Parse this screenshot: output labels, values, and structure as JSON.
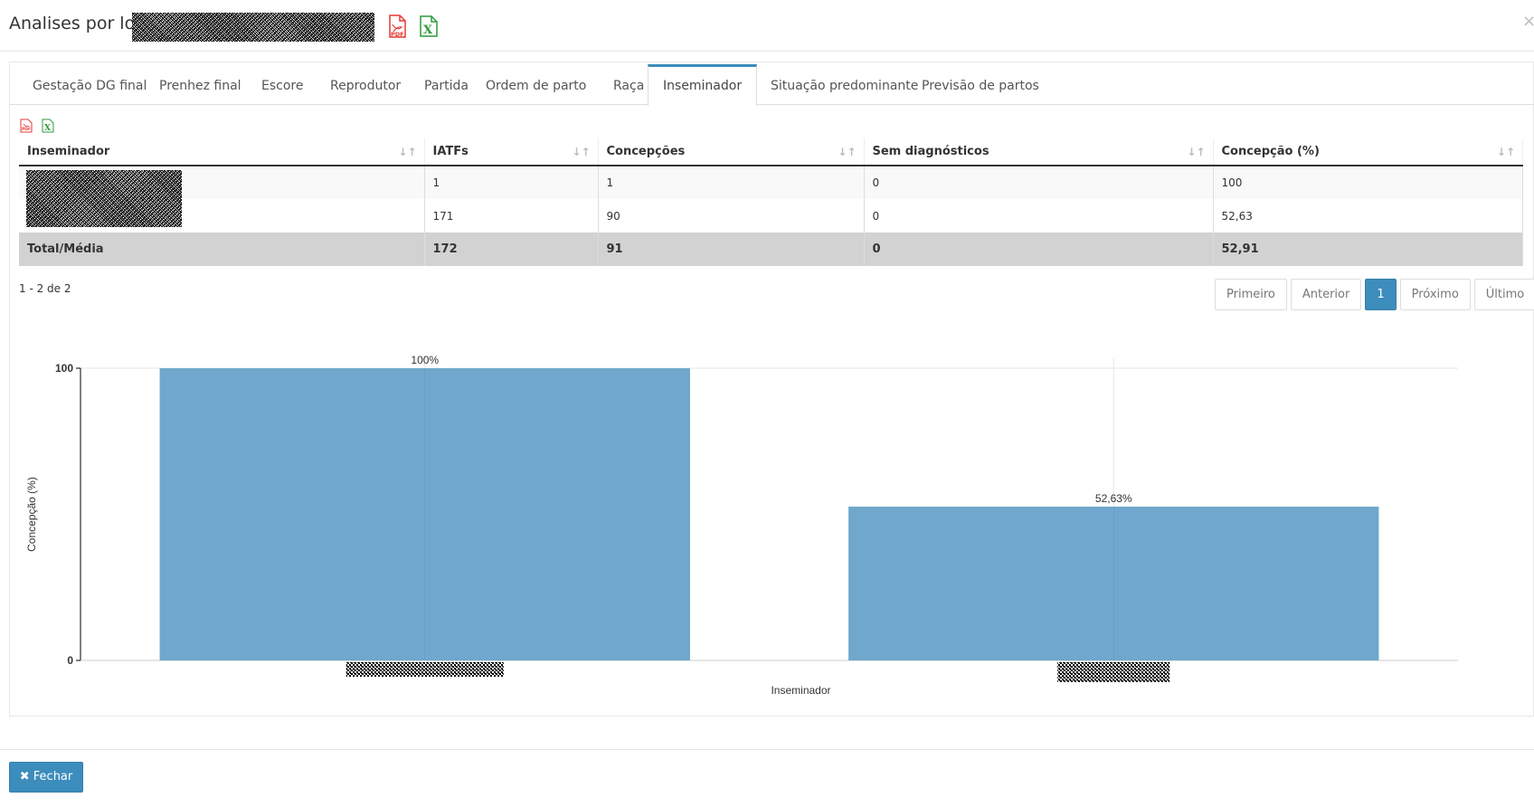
{
  "modal": {
    "title": "Analises por lotes",
    "close_symbol": "×"
  },
  "tabs": [
    {
      "label": "Gestação DG final"
    },
    {
      "label": "Prenhez final"
    },
    {
      "label": "Escore"
    },
    {
      "label": "Reprodutor"
    },
    {
      "label": "Partida"
    },
    {
      "label": "Ordem de parto"
    },
    {
      "label": "Raça"
    },
    {
      "label": "Inseminador"
    },
    {
      "label": "Situação predominante"
    },
    {
      "label": "Previsão de partos"
    }
  ],
  "active_tab": "Inseminador",
  "table": {
    "headers": [
      "Inseminador",
      "IATFs",
      "Concepções",
      "Sem diagnósticos",
      "Concepção (%)"
    ],
    "rows": [
      [
        "",
        "1",
        "1",
        "0",
        "100"
      ],
      [
        "",
        "171",
        "90",
        "0",
        "52,63"
      ]
    ],
    "total": [
      "Total/Média",
      "172",
      "91",
      "0",
      "52,91"
    ]
  },
  "pagination": {
    "info": "1 - 2 de 2",
    "first": "Primeiro",
    "prev": "Anterior",
    "current": "1",
    "next": "Próximo",
    "last": "Último"
  },
  "chart_data": {
    "type": "bar",
    "categories": [
      "",
      ""
    ],
    "values": [
      100,
      52.63
    ],
    "data_labels": [
      "100%",
      "52,63%"
    ],
    "xlabel": "Inseminador",
    "ylabel": "Concepção (%)",
    "ylim": [
      0,
      100
    ],
    "yticks": [
      "0",
      "100"
    ],
    "bar_color": "#6fa8cc"
  },
  "footer": {
    "close_button": "Fechar"
  },
  "colors": {
    "accent": "#3c8dbc",
    "pdf_red": "#e53935",
    "excel_green": "#2e9a3c"
  }
}
